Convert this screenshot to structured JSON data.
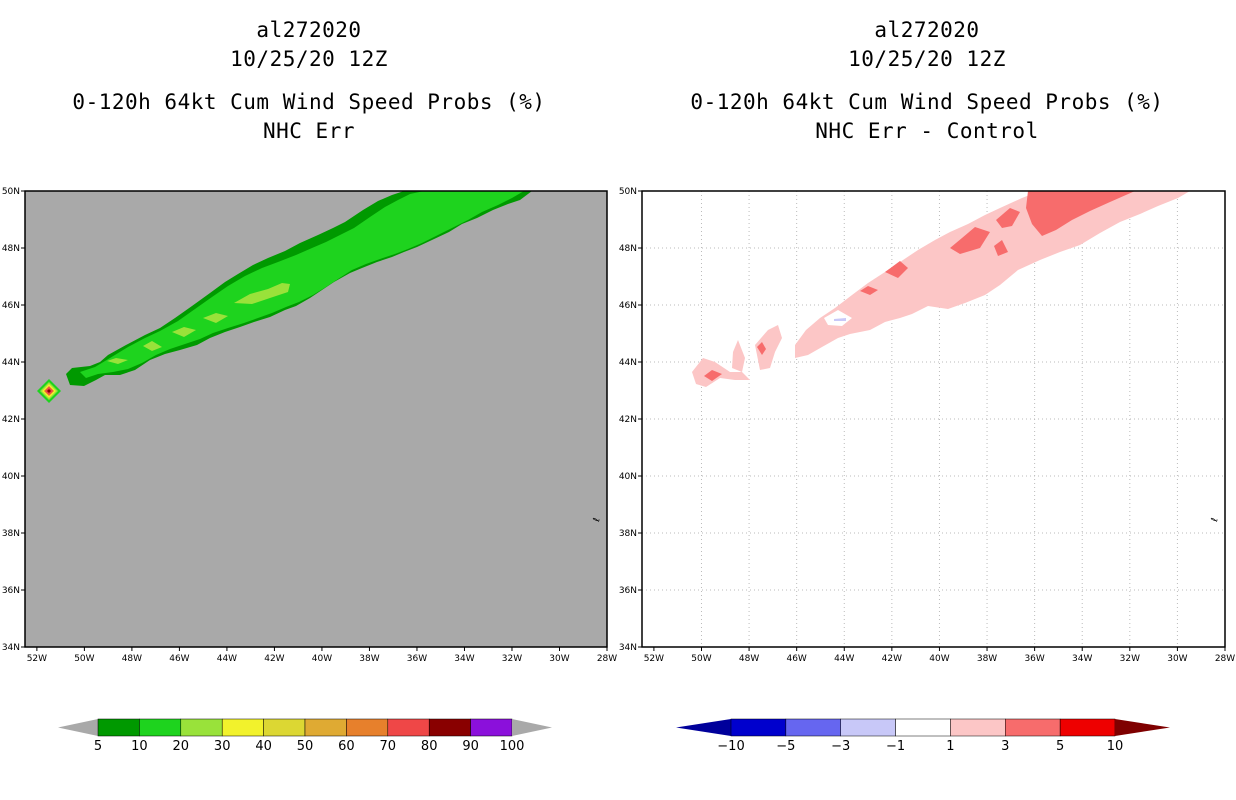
{
  "left_panel": {
    "title_lines": [
      "al272020",
      "10/25/20 12Z",
      "0-120h 64kt Cum Wind Speed Probs (%)",
      "NHC Err"
    ],
    "background_color": "#a9a9a9"
  },
  "right_panel": {
    "title_lines": [
      "al272020",
      "10/25/20 12Z",
      "0-120h 64kt Cum Wind Speed Probs (%)",
      "NHC Err - Control"
    ],
    "background_color": "#ffffff"
  },
  "chart_data": [
    {
      "type": "contour-map",
      "title": "0-120h 64kt Cum Wind Speed Probs (%) NHC Err",
      "storm": "al272020",
      "valid": "10/25/20 12Z",
      "x_ticks": [
        "52W",
        "50W",
        "48W",
        "46W",
        "44W",
        "42W",
        "40W",
        "38W",
        "36W",
        "34W",
        "32W",
        "30W",
        "28W"
      ],
      "y_ticks": [
        "50N",
        "48N",
        "46N",
        "44N",
        "42N",
        "40N",
        "38N",
        "36N",
        "34N"
      ],
      "lon_range": [
        -52.5,
        -28
      ],
      "lat_range": [
        34,
        50
      ],
      "grid": false,
      "colorbar": {
        "levels": [
          "5",
          "10",
          "20",
          "30",
          "40",
          "50",
          "60",
          "70",
          "80",
          "90",
          "100"
        ],
        "colors": [
          "#009900",
          "#1ed31e",
          "#99e23a",
          "#f2f22c",
          "#dcd733",
          "#dfaa33",
          "#e7802c",
          "#ef4747",
          "#890000",
          "#8b10db"
        ],
        "under_color": "#a9a9a9",
        "over_color": "#a9a9a9"
      },
      "features": [
        {
          "name": "probability swath (>=5%)",
          "lon_range": [
            -51,
            -31
          ],
          "lat_range": [
            43.2,
            50
          ]
        },
        {
          "name": "initial position max",
          "lon": -51.5,
          "lat": 43,
          "max_category": "80-90"
        }
      ]
    },
    {
      "type": "contour-map",
      "title": "0-120h 64kt Cum Wind Speed Probs (%) NHC Err - Control",
      "storm": "al272020",
      "valid": "10/25/20 12Z",
      "x_ticks": [
        "52W",
        "50W",
        "48W",
        "46W",
        "44W",
        "42W",
        "40W",
        "38W",
        "36W",
        "34W",
        "32W",
        "30W",
        "28W"
      ],
      "y_ticks": [
        "50N",
        "48N",
        "46N",
        "44N",
        "42N",
        "40N",
        "38N",
        "36N",
        "34N"
      ],
      "lon_range": [
        -52.5,
        -28
      ],
      "lat_range": [
        34,
        50
      ],
      "grid": true,
      "colorbar": {
        "levels": [
          "-10",
          "-5",
          "-3",
          "-1",
          "1",
          "3",
          "5",
          "10"
        ],
        "colors": [
          "#0000cd",
          "#6666f0",
          "#c8c8f8",
          "#ffffff",
          "#fcc6c6",
          "#f76c6c",
          "#ee0000"
        ],
        "under_color": "#00009b",
        "over_color": "#7f0000"
      },
      "features": [
        {
          "name": "difference 1 to 3",
          "lon_range": [
            -50,
            -31
          ],
          "lat_range": [
            43.2,
            50
          ]
        },
        {
          "name": "difference 3 to 5 max",
          "lon": -34,
          "lat": 49.5
        }
      ]
    }
  ]
}
